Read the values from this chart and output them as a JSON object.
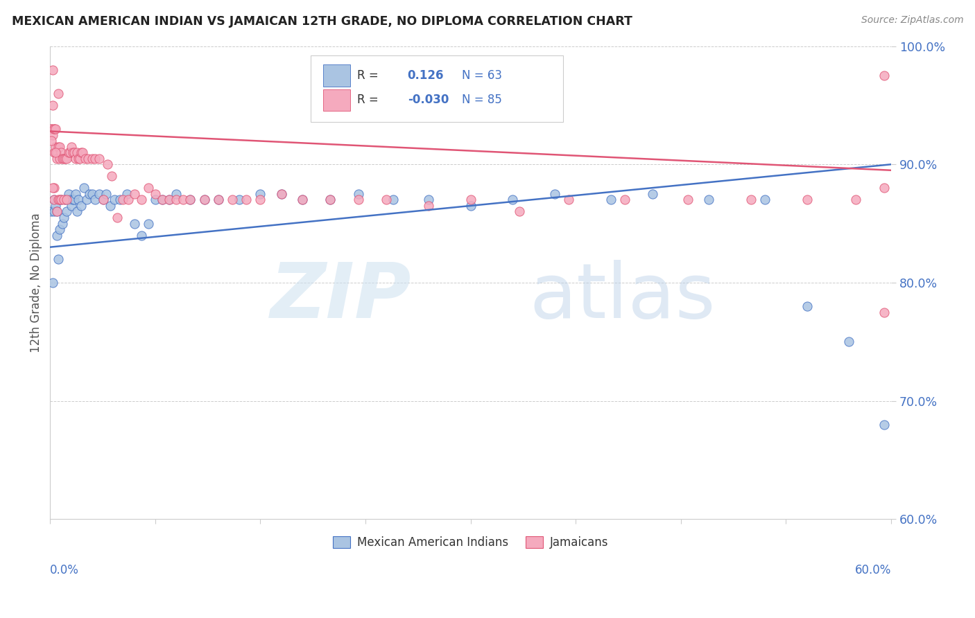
{
  "title": "MEXICAN AMERICAN INDIAN VS JAMAICAN 12TH GRADE, NO DIPLOMA CORRELATION CHART",
  "source": "Source: ZipAtlas.com",
  "ylabel": "12th Grade, No Diploma",
  "ytick_labels": [
    "60.0%",
    "70.0%",
    "80.0%",
    "90.0%",
    "100.0%"
  ],
  "ytick_values": [
    0.6,
    0.7,
    0.8,
    0.9,
    1.0
  ],
  "xmin": 0.0,
  "xmax": 0.6,
  "ymin": 0.6,
  "ymax": 1.0,
  "r_blue": 0.126,
  "n_blue": 63,
  "r_pink": -0.03,
  "n_pink": 85,
  "legend_labels": [
    "Mexican American Indians",
    "Jamaicans"
  ],
  "blue_color": "#aac4e2",
  "pink_color": "#f5aabe",
  "blue_line_color": "#4472c4",
  "pink_line_color": "#e05575",
  "blue_line_y0": 0.83,
  "blue_line_y1": 0.9,
  "pink_line_y0": 0.928,
  "pink_line_y1": 0.895,
  "blue_scatter_x": [
    0.001,
    0.002,
    0.003,
    0.003,
    0.004,
    0.005,
    0.005,
    0.006,
    0.007,
    0.008,
    0.009,
    0.01,
    0.011,
    0.012,
    0.013,
    0.014,
    0.015,
    0.016,
    0.017,
    0.018,
    0.019,
    0.02,
    0.022,
    0.024,
    0.026,
    0.028,
    0.03,
    0.032,
    0.035,
    0.038,
    0.04,
    0.043,
    0.046,
    0.05,
    0.055,
    0.06,
    0.065,
    0.07,
    0.075,
    0.08,
    0.085,
    0.09,
    0.1,
    0.11,
    0.12,
    0.135,
    0.15,
    0.165,
    0.18,
    0.2,
    0.22,
    0.245,
    0.27,
    0.3,
    0.33,
    0.36,
    0.4,
    0.43,
    0.47,
    0.51,
    0.54,
    0.57,
    0.595
  ],
  "blue_scatter_y": [
    0.86,
    0.8,
    0.87,
    0.86,
    0.865,
    0.86,
    0.84,
    0.82,
    0.845,
    0.87,
    0.85,
    0.855,
    0.87,
    0.86,
    0.875,
    0.87,
    0.865,
    0.87,
    0.87,
    0.875,
    0.86,
    0.87,
    0.865,
    0.88,
    0.87,
    0.875,
    0.875,
    0.87,
    0.875,
    0.87,
    0.875,
    0.865,
    0.87,
    0.87,
    0.875,
    0.85,
    0.84,
    0.85,
    0.87,
    0.87,
    0.87,
    0.875,
    0.87,
    0.87,
    0.87,
    0.87,
    0.875,
    0.875,
    0.87,
    0.87,
    0.875,
    0.87,
    0.87,
    0.865,
    0.87,
    0.875,
    0.87,
    0.875,
    0.87,
    0.87,
    0.78,
    0.75,
    0.68
  ],
  "pink_scatter_x": [
    0.001,
    0.001,
    0.002,
    0.002,
    0.002,
    0.003,
    0.003,
    0.003,
    0.004,
    0.004,
    0.005,
    0.005,
    0.006,
    0.006,
    0.007,
    0.007,
    0.008,
    0.009,
    0.01,
    0.011,
    0.012,
    0.013,
    0.014,
    0.015,
    0.016,
    0.017,
    0.018,
    0.019,
    0.02,
    0.021,
    0.022,
    0.023,
    0.025,
    0.027,
    0.03,
    0.032,
    0.035,
    0.038,
    0.041,
    0.044,
    0.048,
    0.052,
    0.056,
    0.06,
    0.065,
    0.07,
    0.075,
    0.08,
    0.085,
    0.09,
    0.095,
    0.1,
    0.11,
    0.12,
    0.13,
    0.14,
    0.15,
    0.165,
    0.18,
    0.2,
    0.22,
    0.24,
    0.27,
    0.3,
    0.335,
    0.37,
    0.41,
    0.455,
    0.5,
    0.54,
    0.575,
    0.595,
    0.003,
    0.002,
    0.001,
    0.004,
    0.003,
    0.005,
    0.006,
    0.007,
    0.008,
    0.595,
    0.01,
    0.595,
    0.012
  ],
  "pink_scatter_y": [
    0.93,
    0.93,
    0.925,
    0.95,
    0.98,
    0.93,
    0.93,
    0.91,
    0.915,
    0.93,
    0.91,
    0.905,
    0.96,
    0.915,
    0.915,
    0.905,
    0.91,
    0.905,
    0.905,
    0.905,
    0.905,
    0.91,
    0.91,
    0.915,
    0.91,
    0.91,
    0.905,
    0.91,
    0.905,
    0.905,
    0.91,
    0.91,
    0.905,
    0.905,
    0.905,
    0.905,
    0.905,
    0.87,
    0.9,
    0.89,
    0.855,
    0.87,
    0.87,
    0.875,
    0.87,
    0.88,
    0.875,
    0.87,
    0.87,
    0.87,
    0.87,
    0.87,
    0.87,
    0.87,
    0.87,
    0.87,
    0.87,
    0.875,
    0.87,
    0.87,
    0.87,
    0.87,
    0.865,
    0.87,
    0.86,
    0.87,
    0.87,
    0.87,
    0.87,
    0.87,
    0.87,
    0.88,
    0.88,
    0.88,
    0.92,
    0.91,
    0.87,
    0.86,
    0.87,
    0.87,
    0.87,
    0.975,
    0.87,
    0.775,
    0.87
  ]
}
